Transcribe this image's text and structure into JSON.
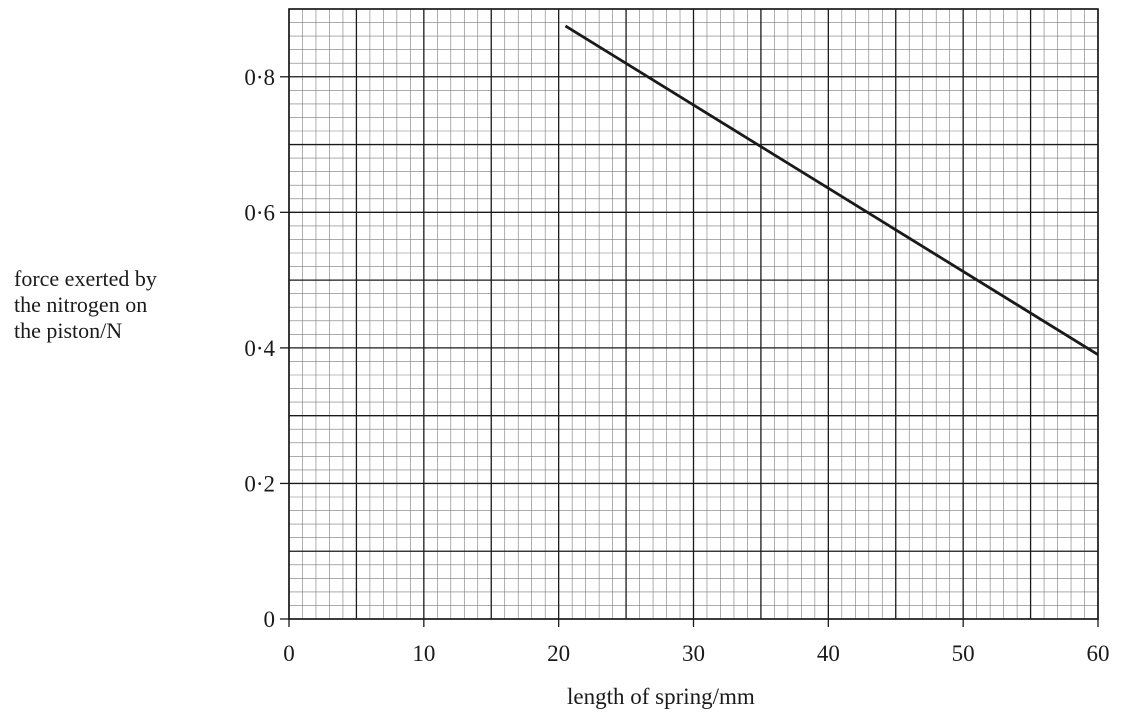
{
  "chart_data": {
    "type": "line",
    "title": "",
    "xlabel": "length of spring/mm",
    "ylabel_lines": [
      "force exerted by",
      "the nitrogen on",
      "the piston/N"
    ],
    "xlim": [
      0,
      60
    ],
    "ylim": [
      0,
      0.9
    ],
    "x_ticks": [
      0,
      10,
      20,
      30,
      40,
      50,
      60
    ],
    "x_tick_labels": [
      "0",
      "10",
      "20",
      "30",
      "40",
      "50",
      "60"
    ],
    "y_ticks": [
      0,
      0.2,
      0.4,
      0.6,
      0.8
    ],
    "y_tick_labels": [
      "0",
      "0·2",
      "0·4",
      "0·6",
      "0·8"
    ],
    "grid": true,
    "grid_minor_x": 1,
    "grid_major_x": 5,
    "grid_minor_y": 0.02,
    "grid_major_y": 0.1,
    "series": [
      {
        "line_color": "#1a1a1a",
        "x": [
          20.5,
          60
        ],
        "y": [
          0.875,
          0.39
        ]
      }
    ]
  }
}
